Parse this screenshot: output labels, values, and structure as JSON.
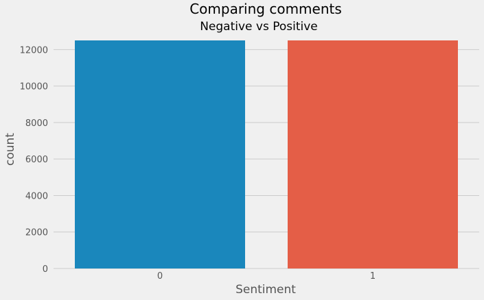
{
  "chart_data": {
    "type": "bar",
    "title": "Comparing comments",
    "subtitle": "Negative vs Positive",
    "xlabel": "Sentiment",
    "ylabel": "count",
    "categories": [
      "0",
      "1"
    ],
    "values": [
      12500,
      12500
    ],
    "colors": [
      "#1a87bc",
      "#e45e47"
    ],
    "ylim": [
      0,
      12500
    ],
    "yticks": [
      0,
      2000,
      4000,
      6000,
      8000,
      10000,
      12000
    ],
    "grid": true,
    "legend": "none"
  }
}
